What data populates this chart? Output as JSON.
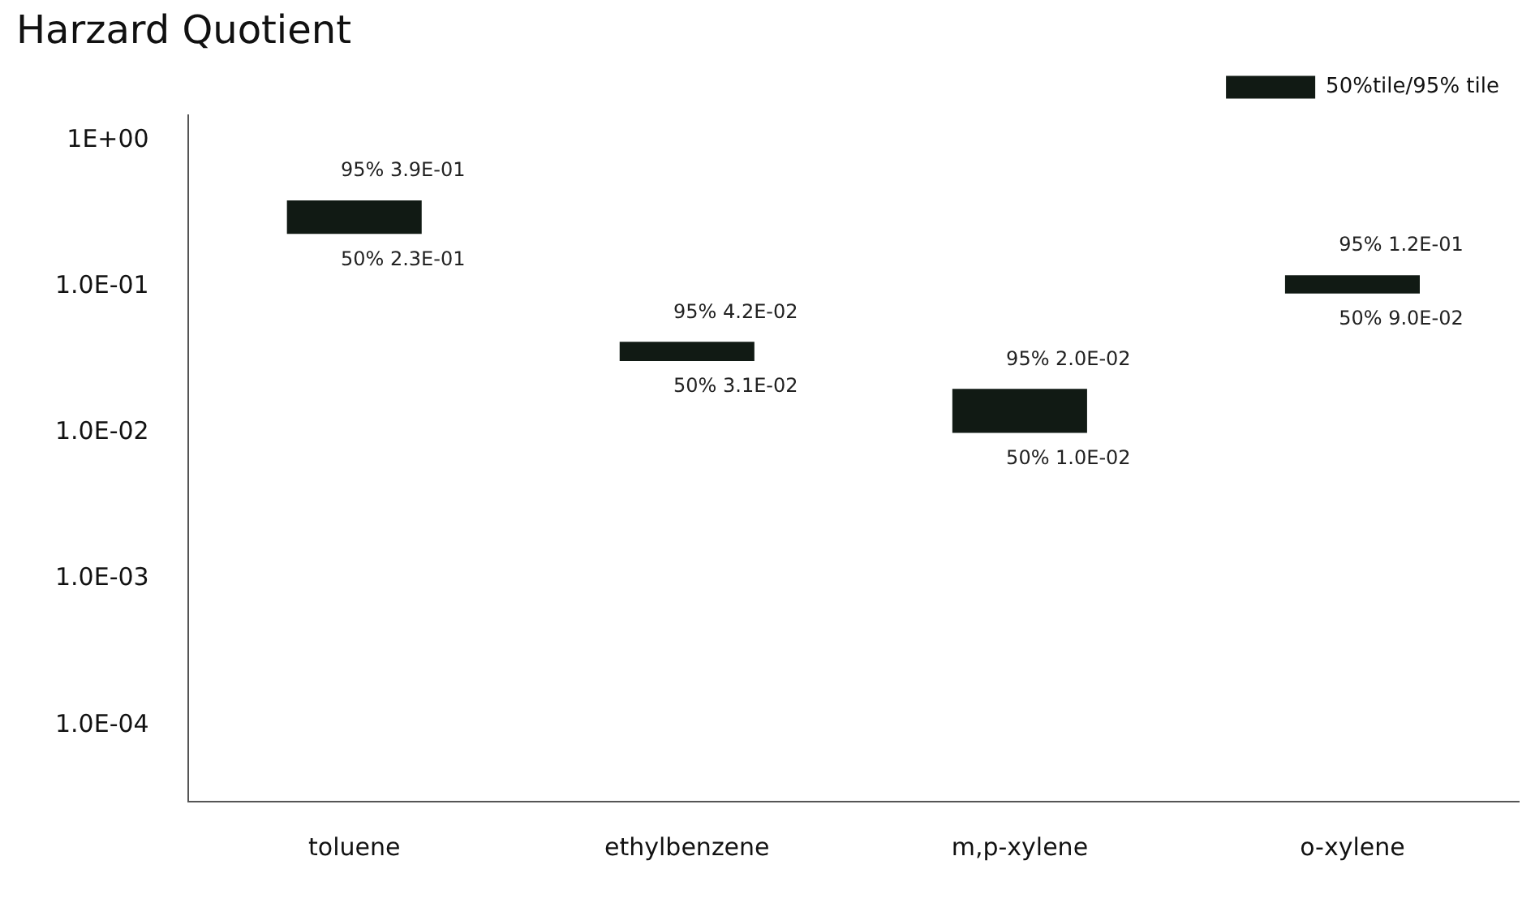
{
  "chart_data": {
    "type": "bar",
    "title": "Harzard Quotient",
    "categories": [
      "toluene",
      "ethylbenzene",
      "m,p-xylene",
      "o-xylene"
    ],
    "series": [
      {
        "name": "50%tile/95% tile",
        "color": "#111a14",
        "base": [
          0.23,
          0.031,
          0.01,
          0.09
        ],
        "values": [
          0.16,
          0.011,
          0.01,
          0.03
        ]
      }
    ],
    "log": "y",
    "ylim": [
      3e-05,
      1.5
    ],
    "yticks": [
      {
        "value": 1,
        "label": "1E+00"
      },
      {
        "value": 0.1,
        "label": "1.0E-01"
      },
      {
        "value": 0.01,
        "label": "1.0E-02"
      },
      {
        "value": 0.001,
        "label": "1.0E-03"
      },
      {
        "value": 0.0001,
        "label": "1.0E-04"
      }
    ],
    "grid": false,
    "legend": "top right",
    "annotations": [
      {
        "text": "95% 3.9E-01",
        "x": "toluene",
        "y": 0.39
      },
      {
        "text": "50% 2.3E-01",
        "x": "toluene",
        "y": 0.23
      },
      {
        "text": "95% 4.2E-02",
        "x": "ethylbenzene",
        "y": 0.042
      },
      {
        "text": "50% 3.1E-02",
        "x": "ethylbenzene",
        "y": 0.031
      },
      {
        "text": "95% 2.0E-02",
        "x": "m,p-xylene",
        "y": 0.02
      },
      {
        "text": "50% 1.0E-02",
        "x": "m,p-xylene",
        "y": 0.01
      },
      {
        "text": "95% 1.2E-01",
        "x": "o-xylene",
        "y": 0.12
      },
      {
        "text": "50% 9.0E-02",
        "x": "o-xylene",
        "y": 0.09
      }
    ]
  }
}
